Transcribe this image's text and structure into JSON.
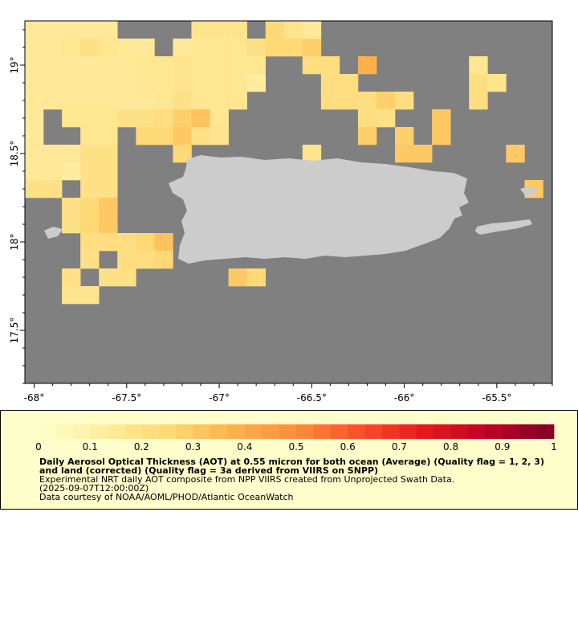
{
  "map": {
    "lon_range": [
      -68.05,
      -65.2
    ],
    "lat_range": [
      17.2,
      19.25
    ],
    "x_ticks": [
      {
        "value": -68,
        "label": "-68°"
      },
      {
        "value": -67.5,
        "label": "-67.5°"
      },
      {
        "value": -67,
        "label": "-67°"
      },
      {
        "value": -66.5,
        "label": "-66.5°"
      },
      {
        "value": -66,
        "label": "-66°"
      },
      {
        "value": -65.5,
        "label": "-65.5°"
      }
    ],
    "y_ticks": [
      {
        "value": 19,
        "label": "19°"
      },
      {
        "value": 18.5,
        "label": "18.5°"
      },
      {
        "value": 18,
        "label": "18°"
      },
      {
        "value": 17.5,
        "label": "17.5°"
      }
    ],
    "colors": {
      "background": "#808080",
      "land": "#cccccc",
      "frame": "#000000"
    },
    "grid_cell_degrees": 0.1
  },
  "chart_data": {
    "type": "heatmap",
    "variable": "AOT",
    "cell_size_deg": 0.1,
    "cells": [
      {
        "lon": -68,
        "lat": 19.2,
        "v": 0.15
      },
      {
        "lon": -67.9,
        "lat": 19.2,
        "v": 0.15
      },
      {
        "lon": -67.8,
        "lat": 19.2,
        "v": 0.15
      },
      {
        "lon": -67.7,
        "lat": 19.2,
        "v": 0.15
      },
      {
        "lon": -67.6,
        "lat": 19.2,
        "v": 0.15
      },
      {
        "lon": -67.1,
        "lat": 19.2,
        "v": 0.18
      },
      {
        "lon": -67,
        "lat": 19.2,
        "v": 0.18
      },
      {
        "lon": -66.9,
        "lat": 19.2,
        "v": 0.18
      },
      {
        "lon": -66.7,
        "lat": 19.2,
        "v": 0.25
      },
      {
        "lon": -66.6,
        "lat": 19.2,
        "v": 0.18
      },
      {
        "lon": -66.5,
        "lat": 19.2,
        "v": 0.15
      },
      {
        "lon": -68,
        "lat": 19.1,
        "v": 0.15
      },
      {
        "lon": -67.9,
        "lat": 19.1,
        "v": 0.15
      },
      {
        "lon": -67.8,
        "lat": 19.1,
        "v": 0.17
      },
      {
        "lon": -67.7,
        "lat": 19.1,
        "v": 0.2
      },
      {
        "lon": -67.6,
        "lat": 19.1,
        "v": 0.17
      },
      {
        "lon": -67.5,
        "lat": 19.1,
        "v": 0.15
      },
      {
        "lon": -67.4,
        "lat": 19.1,
        "v": 0.15
      },
      {
        "lon": -67.2,
        "lat": 19.1,
        "v": 0.15
      },
      {
        "lon": -67.1,
        "lat": 19.1,
        "v": 0.17
      },
      {
        "lon": -67,
        "lat": 19.1,
        "v": 0.17
      },
      {
        "lon": -66.9,
        "lat": 19.1,
        "v": 0.17
      },
      {
        "lon": -66.8,
        "lat": 19.1,
        "v": 0.2
      },
      {
        "lon": -66.7,
        "lat": 19.1,
        "v": 0.25
      },
      {
        "lon": -66.6,
        "lat": 19.1,
        "v": 0.25
      },
      {
        "lon": -66.5,
        "lat": 19.1,
        "v": 0.28
      },
      {
        "lon": -68,
        "lat": 19,
        "v": 0.15
      },
      {
        "lon": -67.9,
        "lat": 19,
        "v": 0.15
      },
      {
        "lon": -67.8,
        "lat": 19,
        "v": 0.15
      },
      {
        "lon": -67.7,
        "lat": 19,
        "v": 0.15
      },
      {
        "lon": -67.6,
        "lat": 19,
        "v": 0.15
      },
      {
        "lon": -67.5,
        "lat": 19,
        "v": 0.15
      },
      {
        "lon": -67.4,
        "lat": 19,
        "v": 0.17
      },
      {
        "lon": -67.3,
        "lat": 19,
        "v": 0.17
      },
      {
        "lon": -67.2,
        "lat": 19,
        "v": 0.18
      },
      {
        "lon": -67.1,
        "lat": 19,
        "v": 0.17
      },
      {
        "lon": -67,
        "lat": 19,
        "v": 0.17
      },
      {
        "lon": -66.9,
        "lat": 19,
        "v": 0.17
      },
      {
        "lon": -66.8,
        "lat": 19,
        "v": 0.17
      },
      {
        "lon": -66.5,
        "lat": 19,
        "v": 0.22
      },
      {
        "lon": -66.4,
        "lat": 19,
        "v": 0.22
      },
      {
        "lon": -66.2,
        "lat": 19,
        "v": 0.38
      },
      {
        "lon": -65.6,
        "lat": 19,
        "v": 0.17
      },
      {
        "lon": -68,
        "lat": 18.9,
        "v": 0.15
      },
      {
        "lon": -67.9,
        "lat": 18.9,
        "v": 0.15
      },
      {
        "lon": -67.8,
        "lat": 18.9,
        "v": 0.15
      },
      {
        "lon": -67.7,
        "lat": 18.9,
        "v": 0.15
      },
      {
        "lon": -67.6,
        "lat": 18.9,
        "v": 0.15
      },
      {
        "lon": -67.5,
        "lat": 18.9,
        "v": 0.15
      },
      {
        "lon": -67.4,
        "lat": 18.9,
        "v": 0.17
      },
      {
        "lon": -67.3,
        "lat": 18.9,
        "v": 0.17
      },
      {
        "lon": -67.2,
        "lat": 18.9,
        "v": 0.18
      },
      {
        "lon": -67.1,
        "lat": 18.9,
        "v": 0.17
      },
      {
        "lon": -67,
        "lat": 18.9,
        "v": 0.17
      },
      {
        "lon": -66.9,
        "lat": 18.9,
        "v": 0.17
      },
      {
        "lon": -66.8,
        "lat": 18.9,
        "v": 0.13
      },
      {
        "lon": -66.4,
        "lat": 18.9,
        "v": 0.22
      },
      {
        "lon": -66.3,
        "lat": 18.9,
        "v": 0.22
      },
      {
        "lon": -65.6,
        "lat": 18.9,
        "v": 0.22
      },
      {
        "lon": -65.5,
        "lat": 18.9,
        "v": 0.18
      },
      {
        "lon": -68,
        "lat": 18.8,
        "v": 0.15
      },
      {
        "lon": -67.9,
        "lat": 18.8,
        "v": 0.15
      },
      {
        "lon": -67.8,
        "lat": 18.8,
        "v": 0.15
      },
      {
        "lon": -67.7,
        "lat": 18.8,
        "v": 0.15
      },
      {
        "lon": -67.6,
        "lat": 18.8,
        "v": 0.15
      },
      {
        "lon": -67.5,
        "lat": 18.8,
        "v": 0.15
      },
      {
        "lon": -67.4,
        "lat": 18.8,
        "v": 0.15
      },
      {
        "lon": -67.3,
        "lat": 18.8,
        "v": 0.17
      },
      {
        "lon": -67.2,
        "lat": 18.8,
        "v": 0.2
      },
      {
        "lon": -67.1,
        "lat": 18.8,
        "v": 0.17
      },
      {
        "lon": -67,
        "lat": 18.8,
        "v": 0.17
      },
      {
        "lon": -66.9,
        "lat": 18.8,
        "v": 0.17
      },
      {
        "lon": -66.4,
        "lat": 18.8,
        "v": 0.22
      },
      {
        "lon": -66.3,
        "lat": 18.8,
        "v": 0.22
      },
      {
        "lon": -66.2,
        "lat": 18.8,
        "v": 0.22
      },
      {
        "lon": -66.1,
        "lat": 18.8,
        "v": 0.28
      },
      {
        "lon": -66,
        "lat": 18.8,
        "v": 0.22
      },
      {
        "lon": -65.6,
        "lat": 18.8,
        "v": 0.22
      },
      {
        "lon": -68,
        "lat": 18.7,
        "v": 0.15
      },
      {
        "lon": -67.8,
        "lat": 18.7,
        "v": 0.17
      },
      {
        "lon": -67.7,
        "lat": 18.7,
        "v": 0.17
      },
      {
        "lon": -67.6,
        "lat": 18.7,
        "v": 0.17
      },
      {
        "lon": -67.5,
        "lat": 18.7,
        "v": 0.2
      },
      {
        "lon": -67.4,
        "lat": 18.7,
        "v": 0.2
      },
      {
        "lon": -67.3,
        "lat": 18.7,
        "v": 0.22
      },
      {
        "lon": -67.2,
        "lat": 18.7,
        "v": 0.28
      },
      {
        "lon": -67.1,
        "lat": 18.7,
        "v": 0.32
      },
      {
        "lon": -67,
        "lat": 18.7,
        "v": 0.17
      },
      {
        "lon": -66.2,
        "lat": 18.7,
        "v": 0.22
      },
      {
        "lon": -66.1,
        "lat": 18.7,
        "v": 0.2
      },
      {
        "lon": -65.8,
        "lat": 18.7,
        "v": 0.3
      },
      {
        "lon": -68,
        "lat": 18.6,
        "v": 0.15
      },
      {
        "lon": -67.7,
        "lat": 18.6,
        "v": 0.17
      },
      {
        "lon": -67.6,
        "lat": 18.6,
        "v": 0.17
      },
      {
        "lon": -67.4,
        "lat": 18.6,
        "v": 0.25
      },
      {
        "lon": -67.3,
        "lat": 18.6,
        "v": 0.25
      },
      {
        "lon": -67.2,
        "lat": 18.6,
        "v": 0.3
      },
      {
        "lon": -67.1,
        "lat": 18.6,
        "v": 0.2
      },
      {
        "lon": -67,
        "lat": 18.6,
        "v": 0.18
      },
      {
        "lon": -66.2,
        "lat": 18.6,
        "v": 0.28
      },
      {
        "lon": -66,
        "lat": 18.6,
        "v": 0.28
      },
      {
        "lon": -65.8,
        "lat": 18.6,
        "v": 0.3
      },
      {
        "lon": -68,
        "lat": 18.5,
        "v": 0.15
      },
      {
        "lon": -67.9,
        "lat": 18.5,
        "v": 0.15
      },
      {
        "lon": -67.8,
        "lat": 18.5,
        "v": 0.15
      },
      {
        "lon": -67.7,
        "lat": 18.5,
        "v": 0.2
      },
      {
        "lon": -67.6,
        "lat": 18.5,
        "v": 0.2
      },
      {
        "lon": -67.2,
        "lat": 18.5,
        "v": 0.25
      },
      {
        "lon": -66.5,
        "lat": 18.5,
        "v": 0.18
      },
      {
        "lon": -66,
        "lat": 18.5,
        "v": 0.3
      },
      {
        "lon": -65.9,
        "lat": 18.5,
        "v": 0.3
      },
      {
        "lon": -65.4,
        "lat": 18.5,
        "v": 0.3
      },
      {
        "lon": -68,
        "lat": 18.4,
        "v": 0.15
      },
      {
        "lon": -67.9,
        "lat": 18.4,
        "v": 0.15
      },
      {
        "lon": -67.8,
        "lat": 18.4,
        "v": 0.13
      },
      {
        "lon": -67.7,
        "lat": 18.4,
        "v": 0.2
      },
      {
        "lon": -67.6,
        "lat": 18.4,
        "v": 0.2
      },
      {
        "lon": -68,
        "lat": 18.3,
        "v": 0.2
      },
      {
        "lon": -67.9,
        "lat": 18.3,
        "v": 0.2
      },
      {
        "lon": -67.7,
        "lat": 18.3,
        "v": 0.2
      },
      {
        "lon": -67.6,
        "lat": 18.3,
        "v": 0.2
      },
      {
        "lon": -65.3,
        "lat": 18.3,
        "v": 0.3
      },
      {
        "lon": -67.8,
        "lat": 18.2,
        "v": 0.2
      },
      {
        "lon": -67.7,
        "lat": 18.2,
        "v": 0.25
      },
      {
        "lon": -67.6,
        "lat": 18.2,
        "v": 0.3
      },
      {
        "lon": -67.8,
        "lat": 18.1,
        "v": 0.2
      },
      {
        "lon": -67.7,
        "lat": 18.1,
        "v": 0.25
      },
      {
        "lon": -67.6,
        "lat": 18.1,
        "v": 0.3
      },
      {
        "lon": -67.7,
        "lat": 18,
        "v": 0.22
      },
      {
        "lon": -67.6,
        "lat": 18,
        "v": 0.22
      },
      {
        "lon": -67.5,
        "lat": 18,
        "v": 0.22
      },
      {
        "lon": -67.4,
        "lat": 18,
        "v": 0.25
      },
      {
        "lon": -67.3,
        "lat": 18,
        "v": 0.32
      },
      {
        "lon": -67.7,
        "lat": 17.9,
        "v": 0.2
      },
      {
        "lon": -67.5,
        "lat": 17.9,
        "v": 0.22
      },
      {
        "lon": -67.4,
        "lat": 17.9,
        "v": 0.22
      },
      {
        "lon": -67.3,
        "lat": 17.9,
        "v": 0.25
      },
      {
        "lon": -67.8,
        "lat": 17.8,
        "v": 0.2
      },
      {
        "lon": -67.6,
        "lat": 17.8,
        "v": 0.2
      },
      {
        "lon": -67.5,
        "lat": 17.8,
        "v": 0.2
      },
      {
        "lon": -66.9,
        "lat": 17.8,
        "v": 0.3
      },
      {
        "lon": -66.8,
        "lat": 17.8,
        "v": 0.25
      },
      {
        "lon": -67.8,
        "lat": 17.7,
        "v": 0.18
      },
      {
        "lon": -67.7,
        "lat": 17.7,
        "v": 0.18
      }
    ]
  },
  "legend": {
    "tick_labels": [
      "0",
      "0.1",
      "0.2",
      "0.3",
      "0.4",
      "0.5",
      "0.6",
      "0.7",
      "0.8",
      "0.9",
      "1"
    ],
    "range": [
      0,
      1
    ],
    "colors": [
      "#ffffcc",
      "#ffeda0",
      "#fed976",
      "#feb24c",
      "#fd8d3c",
      "#fc4e2a",
      "#e31a1c",
      "#bd0026",
      "#800026"
    ],
    "title_line": "Daily Aerosol Optical Thickness (AOT) at 0.55 micron for both ocean (Average) (Quality flag = 1, 2, 3) and land (corrected) (Quality flag = 3a derived from VIIRS on SNPP)",
    "subtitle_line": "Experimental NRT daily AOT composite from NPP VIIRS created from Unprojected Swath Data.",
    "time_line": "(2025-09-07T12:00:00Z)",
    "credit_line": "Data courtesy of NOAA/AOML/PHOD/Atlantic OceanWatch",
    "panel_color": "#ffffcc"
  }
}
